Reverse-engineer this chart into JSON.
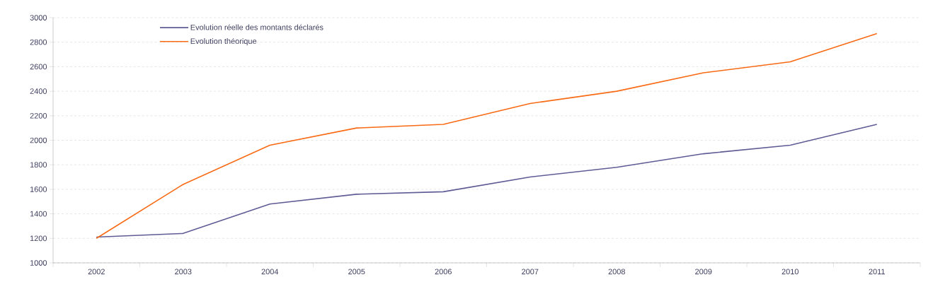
{
  "chart_data": {
    "type": "line",
    "categories": [
      "2002",
      "2003",
      "2004",
      "2005",
      "2006",
      "2007",
      "2008",
      "2009",
      "2010",
      "2011"
    ],
    "series": [
      {
        "name": "Evolution réelle des montants déclarés",
        "color": "#5f5b95",
        "values": [
          1210,
          1240,
          1480,
          1560,
          1580,
          1700,
          1780,
          1890,
          1960,
          2130
        ]
      },
      {
        "name": "Evolution théorique",
        "color": "#f96a14",
        "values": [
          1200,
          1640,
          1960,
          2100,
          2130,
          2300,
          2400,
          2550,
          2640,
          2870
        ]
      }
    ],
    "ylim": [
      1000,
      3000
    ],
    "yticks": [
      1000,
      1200,
      1400,
      1600,
      1800,
      2000,
      2200,
      2400,
      2600,
      2800,
      3000
    ],
    "grid": "y",
    "legend": "top left",
    "marker": "none",
    "line_style": "solid"
  }
}
